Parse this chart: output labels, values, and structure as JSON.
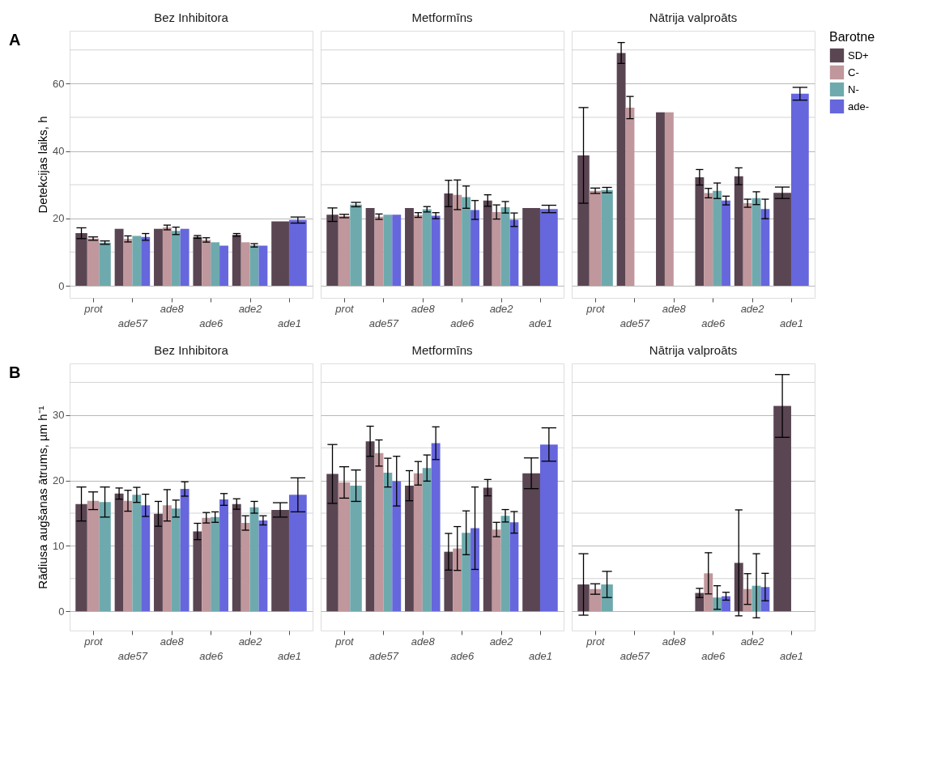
{
  "chart_data": [
    {
      "type": "bar",
      "title": "Bez Inhibitora",
      "ylabel": "Detekcijas laiks, h",
      "annotations": [
        "A"
      ],
      "categories": [
        "prot",
        "ade57",
        "ade8",
        "ade6",
        "ade2",
        "ade1"
      ],
      "ylim": [
        -3.6,
        75.7
      ],
      "yticks": [
        0,
        20,
        40,
        60
      ],
      "grid": "y",
      "series": [
        {
          "color": "#5a4552",
          "values": [
            15.6,
            16.9,
            16.9,
            14.5,
            15.1,
            19.1
          ],
          "errors": [
            1.6,
            null,
            null,
            0.4,
            0.4,
            null
          ]
        },
        {
          "color": "#c0979c",
          "values": [
            14.0,
            13.9,
            17.3,
            13.6,
            12.9,
            null
          ],
          "errors": [
            0.5,
            0.9,
            0.7,
            0.65,
            null,
            null
          ]
        },
        {
          "color": "#6eaaad",
          "values": [
            12.8,
            14.8,
            16.3,
            12.9,
            12.0,
            null
          ],
          "errors": [
            0.5,
            null,
            1.1,
            null,
            0.5,
            null
          ]
        },
        {
          "color": "#6666dd",
          "values": [
            null,
            14.5,
            16.9,
            11.9,
            11.9,
            19.5
          ],
          "errors": [
            null,
            1.0,
            null,
            null,
            null,
            0.9
          ]
        }
      ]
    },
    {
      "type": "bar",
      "title": "Metformīns",
      "categories": [
        "prot",
        "ade57",
        "ade8",
        "ade6",
        "ade2",
        "ade1"
      ],
      "ylim": [
        -3.6,
        75.7
      ],
      "yticks": [
        0,
        20,
        40,
        60
      ],
      "grid": "y",
      "tick_labels": "x",
      "series": [
        {
          "color": "#5a4552",
          "values": [
            21.1,
            23.1,
            23.1,
            27.4,
            25.3,
            23.1
          ],
          "errors": [
            2.0,
            null,
            null,
            3.9,
            1.7,
            null
          ]
        },
        {
          "color": "#c0979c",
          "values": [
            20.7,
            20.5,
            21.0,
            27.0,
            21.9,
            null
          ],
          "errors": [
            0.5,
            0.8,
            0.7,
            4.4,
            2.1,
            null
          ]
        },
        {
          "color": "#6eaaad",
          "values": [
            24.1,
            21.1,
            22.7,
            26.3,
            23.3,
            null
          ],
          "errors": [
            0.65,
            null,
            0.8,
            3.3,
            1.7,
            null
          ]
        },
        {
          "color": "#6666dd",
          "values": [
            null,
            21.1,
            20.8,
            22.5,
            19.6,
            22.8
          ],
          "errors": [
            null,
            null,
            0.9,
            2.8,
            2.0,
            1.1
          ]
        }
      ]
    },
    {
      "type": "bar",
      "title": "Nātrija valproāts",
      "legend": "right",
      "legend_title": "Barotne",
      "categories": [
        "prot",
        "ade57",
        "ade8",
        "ade6",
        "ade2",
        "ade1"
      ],
      "ylim": [
        -3.6,
        75.7
      ],
      "yticks": [
        0,
        20,
        40,
        60
      ],
      "grid": "y",
      "tick_labels": "x",
      "series": [
        {
          "name": "SD+",
          "color": "#5a4552",
          "values": [
            38.7,
            69.1,
            51.5,
            32.2,
            32.5,
            27.6
          ],
          "errors": [
            14.2,
            3.1,
            null,
            2.3,
            2.5,
            1.7
          ]
        },
        {
          "name": "C-",
          "color": "#c0979c",
          "values": [
            28.2,
            52.9,
            51.5,
            27.5,
            24.5,
            null
          ],
          "errors": [
            0.8,
            3.3,
            null,
            1.4,
            1.2,
            null
          ]
        },
        {
          "name": "N-",
          "color": "#6eaaad",
          "values": [
            28.4,
            null,
            null,
            28.2,
            26.0,
            null
          ],
          "errors": [
            0.8,
            null,
            null,
            2.3,
            1.9,
            null
          ]
        },
        {
          "name": "ade-",
          "color": "#6666dd",
          "values": [
            null,
            null,
            null,
            25.3,
            22.8,
            57.0
          ],
          "errors": [
            null,
            null,
            null,
            1.3,
            2.9,
            1.9
          ]
        }
      ]
    },
    {
      "type": "bar",
      "title": "Bez Inhibitora",
      "ylabel": "Rādiusa augšanas ātrums,  µm h⁻¹",
      "annotations": [
        "B"
      ],
      "categories": [
        "prot",
        "ade57",
        "ade8",
        "ade6",
        "ade2",
        "ade1"
      ],
      "ylim": [
        -2.95,
        37.9
      ],
      "yticks": [
        0,
        10,
        20,
        30
      ],
      "grid": "y",
      "series": [
        {
          "color": "#5a4552",
          "values": [
            16.4,
            18.0,
            14.9,
            12.2,
            16.4,
            15.5
          ],
          "errors": [
            2.6,
            0.85,
            1.9,
            1.25,
            0.8,
            1.1
          ]
        },
        {
          "color": "#c0979c",
          "values": [
            16.9,
            16.9,
            16.2,
            14.3,
            13.5,
            null
          ],
          "errors": [
            1.35,
            1.6,
            2.4,
            0.8,
            1.1,
            null
          ]
        },
        {
          "color": "#6eaaad",
          "values": [
            16.7,
            17.8,
            15.7,
            14.4,
            15.9,
            null
          ],
          "errors": [
            2.3,
            1.15,
            1.3,
            0.8,
            0.9,
            null
          ]
        },
        {
          "color": "#6666dd",
          "values": [
            null,
            16.2,
            18.7,
            17.1,
            13.9,
            17.8
          ],
          "errors": [
            null,
            1.7,
            1.1,
            0.9,
            0.7,
            2.6
          ]
        }
      ]
    },
    {
      "type": "bar",
      "title": "Metformīns",
      "categories": [
        "prot",
        "ade57",
        "ade8",
        "ade6",
        "ade2",
        "ade1"
      ],
      "ylim": [
        -2.95,
        37.9
      ],
      "yticks": [
        0,
        10,
        20,
        30
      ],
      "grid": "y",
      "tick_labels": "x",
      "series": [
        {
          "color": "#5a4552",
          "values": [
            21.0,
            26.0,
            19.2,
            9.1,
            18.9,
            21.1
          ],
          "errors": [
            4.5,
            2.3,
            2.3,
            2.8,
            1.25,
            2.35
          ]
        },
        {
          "color": "#c0979c",
          "values": [
            19.7,
            24.2,
            21.1,
            9.6,
            12.5,
            null
          ],
          "errors": [
            2.4,
            2.0,
            1.8,
            3.35,
            1.1,
            null
          ]
        },
        {
          "color": "#6eaaad",
          "values": [
            19.2,
            21.2,
            21.9,
            12.0,
            14.6,
            null
          ],
          "errors": [
            2.4,
            2.2,
            2.0,
            3.35,
            0.95,
            null
          ]
        },
        {
          "color": "#6666dd",
          "values": [
            null,
            19.9,
            25.7,
            12.7,
            13.6,
            25.5
          ],
          "errors": [
            null,
            3.8,
            2.5,
            6.3,
            1.65,
            2.55
          ]
        }
      ]
    },
    {
      "type": "bar",
      "title": "Nātrija valproāts",
      "categories": [
        "prot",
        "ade57",
        "ade8",
        "ade6",
        "ade2",
        "ade1"
      ],
      "ylim": [
        -2.95,
        37.9
      ],
      "yticks": [
        0,
        10,
        20,
        30
      ],
      "grid": "y",
      "tick_labels": "x",
      "series": [
        {
          "color": "#5a4552",
          "values": [
            4.1,
            null,
            null,
            2.8,
            7.4,
            31.4
          ],
          "errors": [
            4.7,
            null,
            null,
            0.7,
            8.1,
            4.8
          ]
        },
        {
          "color": "#c0979c",
          "values": [
            3.4,
            null,
            null,
            5.8,
            3.4,
            null
          ],
          "errors": [
            0.8,
            null,
            null,
            3.15,
            2.35,
            null
          ]
        },
        {
          "color": "#6eaaad",
          "values": [
            4.1,
            null,
            null,
            2.1,
            3.9,
            null
          ],
          "errors": [
            2.0,
            null,
            null,
            1.8,
            4.9,
            null
          ]
        },
        {
          "color": "#6666dd",
          "values": [
            null,
            null,
            null,
            2.3,
            3.7,
            null
          ],
          "errors": [
            null,
            null,
            null,
            0.6,
            2.1,
            null
          ]
        }
      ]
    }
  ]
}
